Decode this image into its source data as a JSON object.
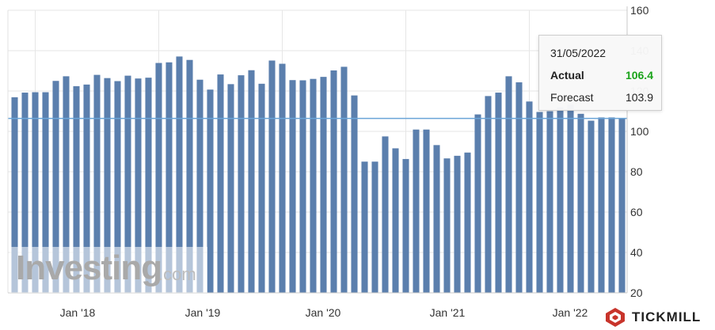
{
  "chart_data": {
    "type": "bar",
    "y_axis_position": "right",
    "ylim": [
      20,
      160
    ],
    "y_ticks": [
      "20",
      "40",
      "60",
      "80",
      "100",
      "120",
      "140",
      "160"
    ],
    "x_ticks": [
      "Jan '18",
      "Jan '19",
      "Jan '20",
      "Jan '21",
      "Jan '22"
    ],
    "grid": true,
    "bar_color": "#5b7fad",
    "reference_line": {
      "value": 106.4,
      "color": "#6aa4d8"
    },
    "values": [
      116.9,
      119.2,
      119.4,
      119.4,
      125.0,
      127.3,
      122.4,
      123.2,
      128.0,
      126.4,
      124.9,
      127.6,
      126.2,
      126.6,
      133.9,
      134.2,
      137.1,
      135.4,
      125.6,
      120.7,
      128.2,
      123.4,
      127.8,
      130.3,
      123.6,
      135.1,
      133.5,
      125.4,
      125.3,
      126.0,
      127.0,
      130.2,
      132.0,
      117.8,
      85.0,
      85.0,
      97.5,
      91.6,
      86.3,
      100.9,
      100.9,
      93.2,
      86.6,
      87.9,
      89.5,
      108.4,
      117.5,
      119.2,
      127.3,
      124.3,
      114.8,
      109.6,
      110.0,
      112.0,
      113.3,
      108.7,
      105.3,
      106.9,
      106.9,
      106.4
    ]
  },
  "tooltip": {
    "date": "31/05/2022",
    "actual_label": "Actual",
    "actual_value": "106.4",
    "forecast_label": "Forecast",
    "forecast_value": "103.9"
  },
  "watermark": {
    "word": "Investing",
    "suffix": ".com"
  },
  "brand": {
    "name": "TICKMILL"
  },
  "colors": {
    "bar": "#5b7fad",
    "reference_line": "#6aa4d8",
    "actual_value": "#1aa31a",
    "brand_logo": "#c8342b"
  }
}
